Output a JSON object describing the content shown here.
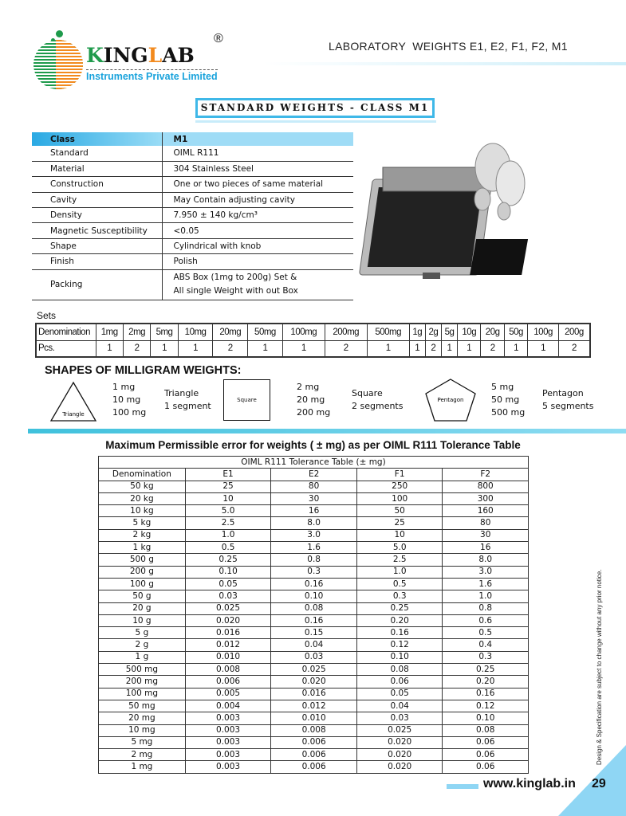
{
  "logo": {
    "brand_a": "K",
    "brand_b": "ING",
    "brand_c": "L",
    "brand_d": "AB",
    "registered": "®",
    "subtitle": "Instruments Private Limited"
  },
  "header": {
    "title": "LABORATORY  WEIGHTS E1, E2, F1, F2, M1"
  },
  "section": {
    "title": "STANDARD WEIGHTS - CLASS M1"
  },
  "spec": {
    "header": [
      "Class",
      "M1"
    ],
    "rows": [
      [
        "Standard",
        "OIML R111"
      ],
      [
        "Material",
        "304 Stainless Steel"
      ],
      [
        "Construction",
        "One or two pieces of same material"
      ],
      [
        "Cavity",
        "May Contain adjusting cavity"
      ],
      [
        "Density",
        "7.950 ± 140 kg/cm³"
      ],
      [
        "Magnetic Susceptibility",
        "<0.05"
      ],
      [
        "Shape",
        "Cylindrical with knob"
      ],
      [
        "Finish",
        "Polish"
      ]
    ],
    "packing": {
      "label": "Packing",
      "line1": "ABS Box (1mg to 200g) Set &",
      "line2": "All single Weight with out Box"
    }
  },
  "sets": {
    "label": "Sets",
    "denomination": [
      "Denomination",
      "1mg",
      "2mg",
      "5mg",
      "10mg",
      "20mg",
      "50mg",
      "100mg",
      "200mg",
      "500mg",
      "1g",
      "2g",
      "5g",
      "10g",
      "20g",
      "50g",
      "100g",
      "200g"
    ],
    "pcs": [
      "Pcs.",
      "1",
      "2",
      "1",
      "1",
      "2",
      "1",
      "1",
      "2",
      "1",
      "1",
      "2",
      "1",
      "1",
      "2",
      "1",
      "1",
      "2"
    ]
  },
  "shapes": {
    "title": "SHAPES OF MILLIGRAM WEIGHTS:",
    "items": [
      {
        "shape": "Triangle",
        "values": [
          "1 mg",
          "10 mg",
          "100 mg"
        ],
        "name": "Triangle",
        "segments": "1 segment"
      },
      {
        "shape": "Square",
        "values": [
          "2 mg",
          "20 mg",
          "200 mg"
        ],
        "name": "Square",
        "segments": "2 segments"
      },
      {
        "shape": "Pentagon",
        "values": [
          "5 mg",
          "50 mg",
          "500 mg"
        ],
        "name": "Pentagon",
        "segments": "5 segments"
      }
    ]
  },
  "tolerance": {
    "title": "Maximum Permissible error for weights ( ± mg) as per OIML R111 Tolerance Table",
    "caption": "OIML R111 Tolerance Table (± mg)",
    "columns": [
      "Denomination",
      "E1",
      "E2",
      "F1",
      "F2"
    ],
    "rows": [
      [
        "50 kg",
        "25",
        "80",
        "250",
        "800"
      ],
      [
        "20 kg",
        "10",
        "30",
        "100",
        "300"
      ],
      [
        "10 kg",
        "5.0",
        "16",
        "50",
        "160"
      ],
      [
        "5 kg",
        "2.5",
        "8.0",
        "25",
        "80"
      ],
      [
        "2 kg",
        "1.0",
        "3.0",
        "10",
        "30"
      ],
      [
        "1 kg",
        "0.5",
        "1.6",
        "5.0",
        "16"
      ],
      [
        "500 g",
        "0.25",
        "0.8",
        "2.5",
        "8.0"
      ],
      [
        "200 g",
        "0.10",
        "0.3",
        "1.0",
        "3.0"
      ],
      [
        "100 g",
        "0.05",
        "0.16",
        "0.5",
        "1.6"
      ],
      [
        "50 g",
        "0.03",
        "0.10",
        "0.3",
        "1.0"
      ],
      [
        "20 g",
        "0.025",
        "0.08",
        "0.25",
        "0.8"
      ],
      [
        "10 g",
        "0.020",
        "0.16",
        "0.20",
        "0.6"
      ],
      [
        "5 g",
        "0.016",
        "0.15",
        "0.16",
        "0.5"
      ],
      [
        "2 g",
        "0.012",
        "0.04",
        "0.12",
        "0.4"
      ],
      [
        "1 g",
        "0.010",
        "0.03",
        "0.10",
        "0.3"
      ],
      [
        "500 mg",
        "0.008",
        "0.025",
        "0.08",
        "0.25"
      ],
      [
        "200 mg",
        "0.006",
        "0.020",
        "0.06",
        "0.20"
      ],
      [
        "100 mg",
        "0.005",
        "0.016",
        "0.05",
        "0.16"
      ],
      [
        "50 mg",
        "0.004",
        "0.012",
        "0.04",
        "0.12"
      ],
      [
        "20 mg",
        "0.003",
        "0.010",
        "0.03",
        "0.10"
      ],
      [
        "10 mg",
        "0.003",
        "0.008",
        "0.025",
        "0.08"
      ],
      [
        "5 mg",
        "0.003",
        "0.006",
        "0.020",
        "0.06"
      ],
      [
        "2 mg",
        "0.003",
        "0.006",
        "0.020",
        "0.06"
      ],
      [
        "1 mg",
        "0.003",
        "0.006",
        "0.020",
        "0.06"
      ]
    ]
  },
  "footer": {
    "url": "www.kinglab.in",
    "page": "29",
    "note": "Design & Specification are subject to change without any prior notice."
  },
  "colors": {
    "accent": "#3fb8e8",
    "brand_green": "#1e9a4b",
    "brand_orange": "#f28a1e"
  }
}
